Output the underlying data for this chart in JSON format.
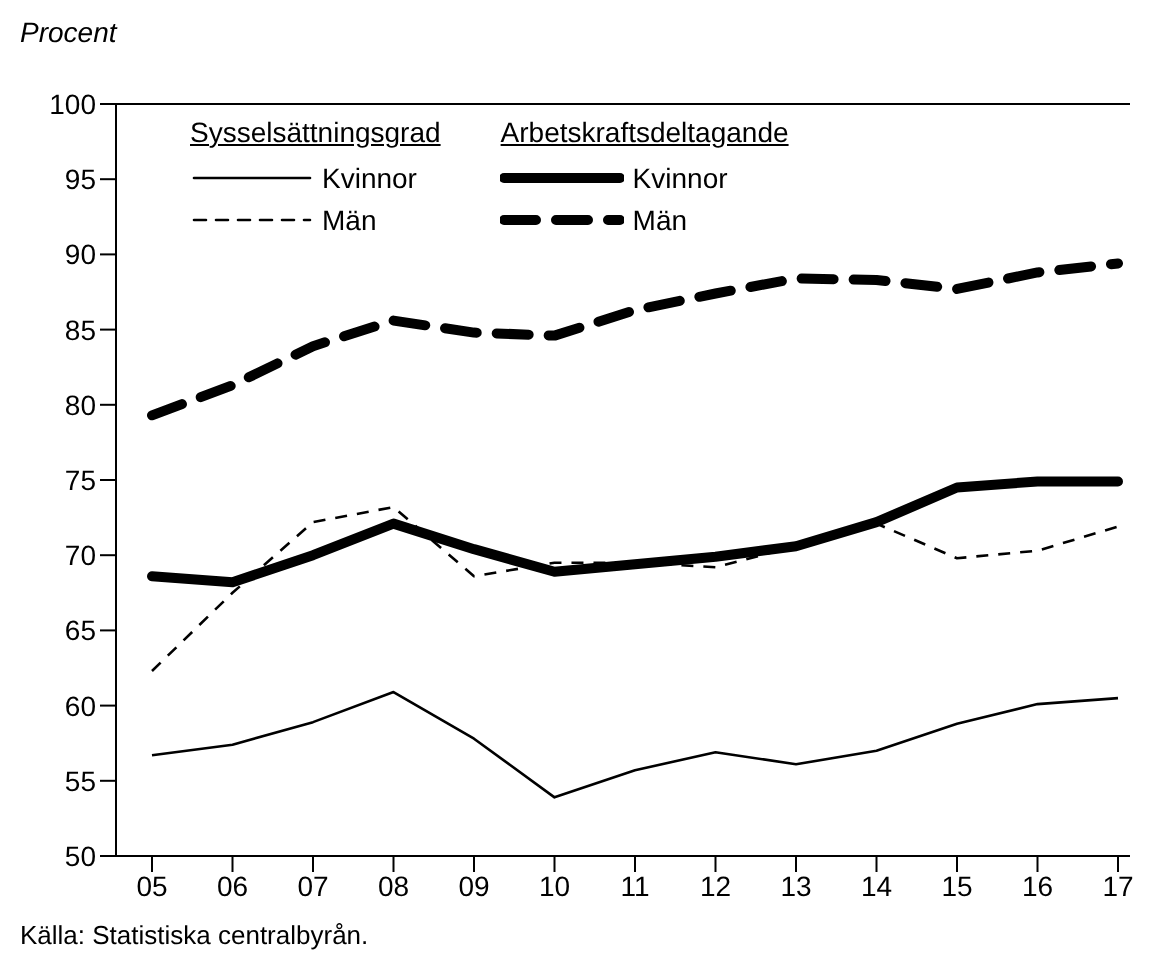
{
  "chart_data": {
    "type": "line",
    "ylabel": "Procent",
    "categories": [
      "05",
      "06",
      "07",
      "08",
      "09",
      "10",
      "11",
      "12",
      "13",
      "14",
      "15",
      "16",
      "17"
    ],
    "series": [
      {
        "name": "Kvinnor",
        "color": "#000000",
        "line_style": "solid",
        "values": [
          56.7,
          57.4,
          58.9,
          60.9,
          57.8,
          53.9,
          55.7,
          56.9,
          56.1,
          57.0,
          58.8,
          60.1,
          60.5
        ]
      },
      {
        "name": "Män",
        "color": "#000000",
        "line_style": "dashed",
        "values": [
          62.3,
          67.5,
          72.2,
          73.2,
          68.6,
          69.5,
          69.5,
          69.2,
          70.6,
          72.1,
          69.8,
          70.3,
          71.9
        ]
      },
      {
        "name": "Kvinnor",
        "color": "#000000",
        "line_style": "solid",
        "values": [
          68.6,
          68.2,
          70.0,
          72.1,
          70.4,
          68.9,
          69.4,
          69.9,
          70.6,
          72.2,
          74.5,
          74.9,
          74.9
        ]
      },
      {
        "name": "Män",
        "color": "#000000",
        "line_style": "dashed",
        "values": [
          79.3,
          81.3,
          83.9,
          85.6,
          84.8,
          84.6,
          86.3,
          87.4,
          88.4,
          88.3,
          87.7,
          88.8,
          89.4
        ]
      }
    ],
    "ylim": [
      50,
      100
    ],
    "yticks": [
      50,
      55,
      60,
      65,
      70,
      75,
      80,
      85,
      90,
      95,
      100
    ],
    "grid": false,
    "legend": "top left",
    "marker": "none",
    "annotations": [
      "Sysselsättningsgrad",
      "Arbetskraftsdeltagande",
      "Källa: Statistiska centralbyrån."
    ]
  }
}
